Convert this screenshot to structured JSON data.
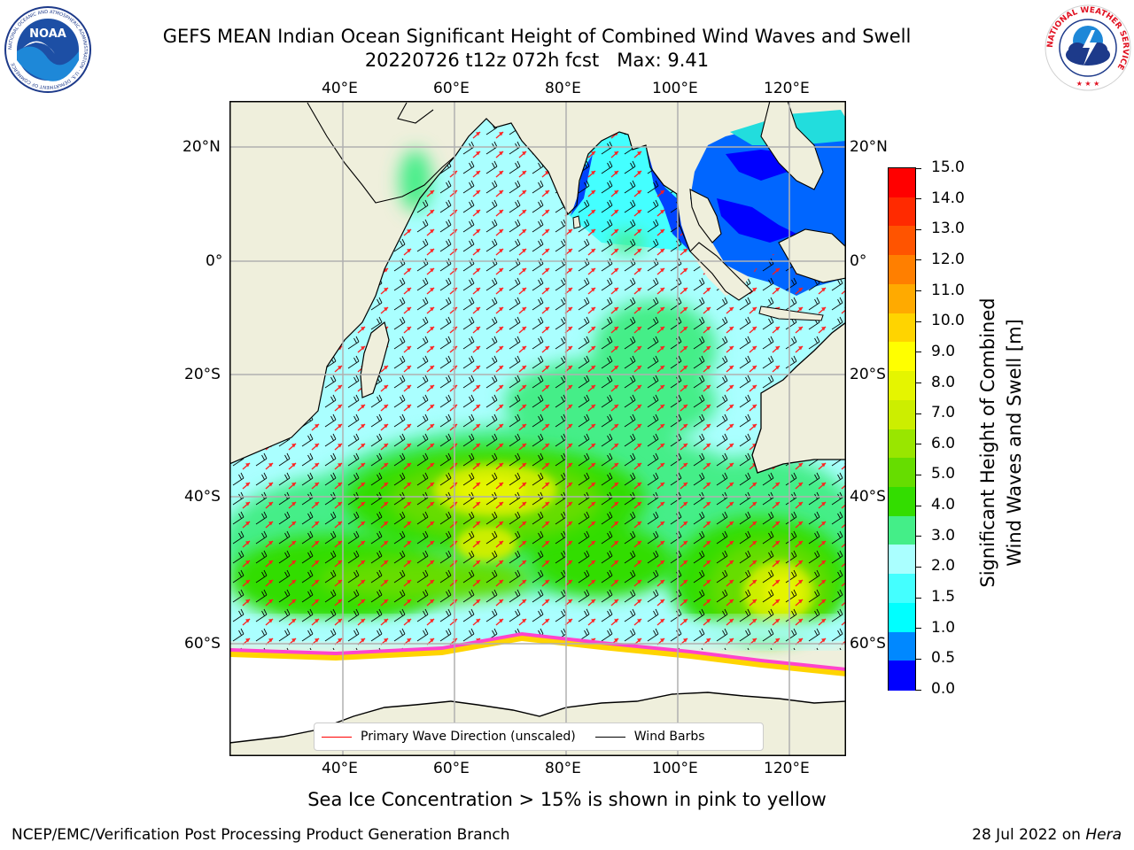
{
  "title_line1": "GEFS MEAN Indian Ocean Significant Height of Combined Wind Waves and Swell",
  "title_line2": "20220726 t12z 072h fcst   Max: 9.41",
  "logo_left": {
    "text": "NOAA",
    "ring_text": "NATIONAL OCEANIC AND ATMOSPHERIC ADMINISTRATION · U.S. DEPARTMENT OF COMMERCE"
  },
  "logo_right": {
    "ring_text": "NATIONAL WEATHER SERVICE"
  },
  "map": {
    "lon_ticks": [
      "40°E",
      "60°E",
      "80°E",
      "100°E",
      "120°E"
    ],
    "lat_ticks_left": [
      "20°N",
      "0°",
      "20°S",
      "40°S",
      "60°S"
    ],
    "lat_ticks_right": [
      "20°N",
      "0°",
      "20°S",
      "40°S",
      "60°S"
    ],
    "land_color": "#efefdc",
    "ice_color": "#ffffff",
    "grid": true
  },
  "colorbar": {
    "label_line1": "Significant Height of Combined",
    "label_line2": "Wind Waves and Swell [m]",
    "ticks": [
      "15.0",
      "14.0",
      "13.0",
      "12.0",
      "11.0",
      "10.0",
      "9.0",
      "8.0",
      "7.0",
      "6.0",
      "5.0",
      "4.0",
      "3.0",
      "2.0",
      "1.5",
      "1.0",
      "0.5",
      "0.0"
    ],
    "colors": [
      "#ff0000",
      "#ff2a00",
      "#ff5400",
      "#ff7f00",
      "#ffaa00",
      "#ffd400",
      "#ffff00",
      "#e5f500",
      "#ccee00",
      "#99e600",
      "#66dd00",
      "#33dd00",
      "#44ee88",
      "#aaffff",
      "#44ffff",
      "#00ffff",
      "#0088ff",
      "#0000ff"
    ]
  },
  "legend": {
    "items": [
      {
        "label": "Primary Wave Direction (unscaled)",
        "color": "#ff0000"
      },
      {
        "label": "Wind Barbs",
        "color": "#000000"
      }
    ]
  },
  "caption": "Sea Ice Concentration > 15% is shown in pink to yellow",
  "footer_left": "NCEP/EMC/Verification Post Processing Product Generation Branch",
  "footer_right_date": "28 Jul 2022 on ",
  "footer_right_host": "Hera"
}
